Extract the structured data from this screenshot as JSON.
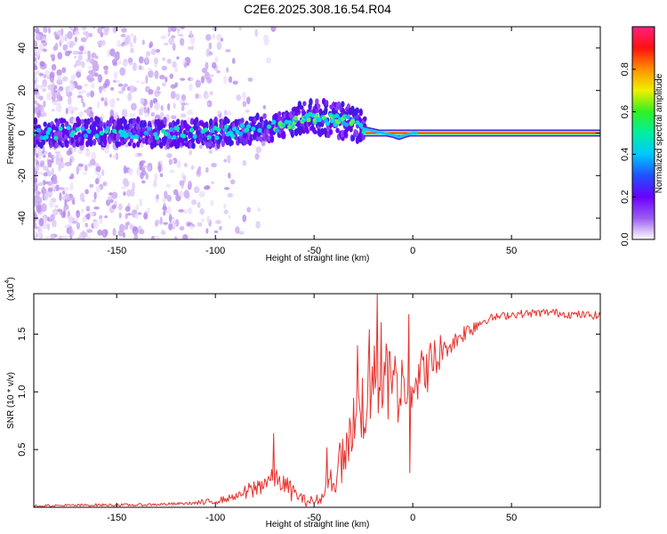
{
  "title": "C2E6.2025.308.16.54.R04",
  "colors": {
    "snr_line": "#e8322e",
    "spectrum_haze": "#c9a7f0",
    "spectrum_core": "#5a0fd8",
    "carrier_line": "#ff2a2a"
  },
  "chart_data": [
    {
      "id": "spectrogram",
      "type": "heatmap",
      "xlabel": "Height of straight line (km)",
      "ylabel": "Frequency (Hz)",
      "xlim": [
        -192,
        95
      ],
      "ylim": [
        -50,
        50
      ],
      "xticks": [
        -150,
        -100,
        -50,
        0,
        50
      ],
      "xtick_labels": [
        "-150",
        "-100",
        "-50",
        "0",
        "50"
      ],
      "yticks": [
        -40,
        -20,
        0,
        20,
        40
      ],
      "ytick_labels": [
        "-40",
        "-20",
        "0",
        "20",
        "40"
      ],
      "colorbar": {
        "label": "Normalized spectral amplitude",
        "range": [
          0,
          1
        ],
        "ticks": [
          0,
          0.2,
          0.4,
          0.6,
          0.8
        ],
        "tick_labels": [
          "0.0",
          "0.2",
          "0.4",
          "0.6",
          "0.8"
        ],
        "colormap": [
          "#ffffff",
          "#9b5cf0",
          "#6a00ff",
          "#2050ff",
          "#00c8ff",
          "#00f0a0",
          "#30f020",
          "#f0f000",
          "#ff9000",
          "#ff1010",
          "#ff2080"
        ]
      },
      "ridge_center_hz": {
        "x": [
          -190,
          -175,
          -160,
          -145,
          -130,
          -115,
          -100,
          -90,
          -80,
          -70,
          -60,
          -52,
          -45,
          -38,
          -32,
          -28,
          -25,
          -20,
          -15,
          -10,
          -7,
          -4,
          0,
          10,
          30,
          60,
          95
        ],
        "y": [
          0,
          0,
          1,
          0,
          0,
          0,
          0,
          1,
          2,
          3,
          5,
          7,
          7,
          6,
          5,
          4,
          2,
          1,
          0,
          -1,
          -2,
          -1,
          0,
          0,
          0,
          0,
          0
        ]
      },
      "carrier_line": {
        "x_start": -25,
        "x_end": 95,
        "y": 0
      }
    },
    {
      "id": "snr",
      "type": "line",
      "xlabel": "Height of straight line (km)",
      "ylabel": "SNR (10 * v/v)",
      "y_multiplier_label": "(x10",
      "y_multiplier_exp": "4",
      "xlim": [
        -192,
        95
      ],
      "ylim": [
        0,
        1.85
      ],
      "xticks": [
        -150,
        -100,
        -50,
        0,
        50
      ],
      "xtick_labels": [
        "-150",
        "-100",
        "-50",
        "0",
        "50"
      ],
      "yticks": [
        0.5,
        1.0,
        1.5
      ],
      "ytick_labels": [
        "0.5",
        "1.0",
        "1.5"
      ],
      "series": [
        {
          "name": "SNR",
          "x": [
            -192,
            -160,
            -140,
            -120,
            -105,
            -95,
            -85,
            -80,
            -75,
            -70,
            -67,
            -62,
            -55,
            -50,
            -45,
            -40,
            -35,
            -30,
            -25,
            -20,
            -15,
            -10,
            -5,
            0,
            5,
            10,
            15,
            20,
            25,
            30,
            35,
            40,
            50,
            60,
            70,
            80,
            95
          ],
          "y": [
            0.01,
            0.02,
            0.02,
            0.03,
            0.04,
            0.07,
            0.12,
            0.16,
            0.22,
            0.25,
            0.22,
            0.15,
            0.06,
            0.05,
            0.09,
            0.25,
            0.45,
            0.7,
            0.9,
            1.05,
            1.12,
            1.05,
            1.05,
            1.08,
            1.17,
            1.25,
            1.35,
            1.42,
            1.5,
            1.56,
            1.61,
            1.64,
            1.67,
            1.68,
            1.69,
            1.67,
            1.66
          ]
        }
      ],
      "spikes": [
        {
          "x": -70.5,
          "y": 0.64
        },
        {
          "x": -28,
          "y": 1.4
        },
        {
          "x": -22,
          "y": 1.54
        },
        {
          "x": -20.5,
          "y": 1.22
        },
        {
          "x": -18,
          "y": 1.85
        },
        {
          "x": -16,
          "y": 1.6
        },
        {
          "x": -12,
          "y": 1.35
        },
        {
          "x": -2,
          "y": 1.67
        },
        {
          "x": -1.5,
          "y": 0.3
        }
      ]
    }
  ]
}
